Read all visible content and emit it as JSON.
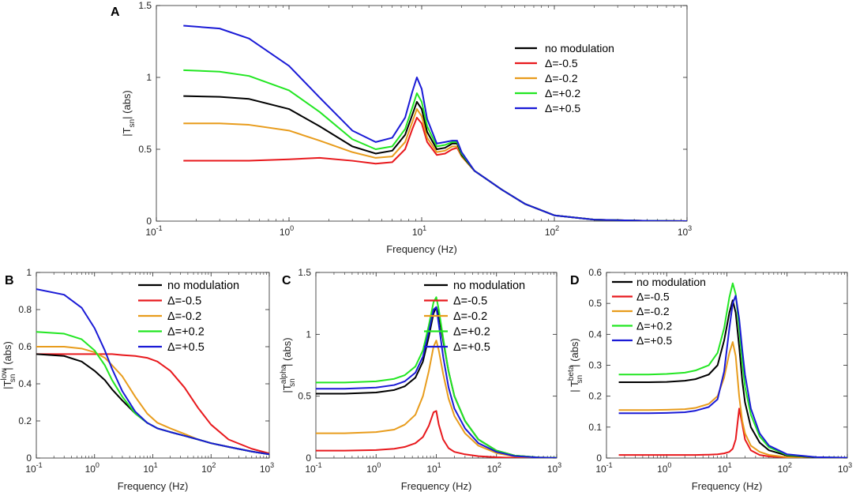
{
  "colors": {
    "no_modulation": "#000000",
    "m05": "#e8191d",
    "m02": "#e89c1c",
    "p02": "#22e622",
    "p05": "#1a1ad6",
    "axis": "#262626"
  },
  "chart_data": [
    {
      "id": "A",
      "type": "line",
      "panel_label": "A",
      "title": "",
      "xlabel": "Frequency (Hz)",
      "ylabel_parts": [
        "|T",
        "sn",
        "",
        "| (abs)"
      ],
      "xscale": "log",
      "xlim": [
        0.1,
        1000
      ],
      "ylim": [
        0,
        1.5
      ],
      "yticks": [
        0,
        0.5,
        1,
        1.5
      ],
      "ytick_labels": [
        "0",
        "0.5",
        "1",
        "1.5"
      ],
      "xticks": [
        0.1,
        1,
        10,
        100,
        1000
      ],
      "xtick_bases": [
        "10",
        "10",
        "10",
        "10",
        "10"
      ],
      "xtick_exps": [
        "-1",
        "0",
        "1",
        "2",
        "3"
      ],
      "legend_loc": "upper-right",
      "x": [
        0.16,
        0.3,
        0.5,
        1,
        1.7,
        3,
        4.5,
        6,
        7.5,
        8.5,
        9.2,
        10,
        11,
        13,
        15,
        17,
        18.5,
        20,
        25,
        30,
        40,
        60,
        100,
        200,
        500,
        1000
      ],
      "series": [
        {
          "name": "no modulation",
          "color_key": "no_modulation",
          "values": [
            0.87,
            0.865,
            0.85,
            0.78,
            0.66,
            0.52,
            0.47,
            0.49,
            0.6,
            0.74,
            0.83,
            0.78,
            0.62,
            0.5,
            0.51,
            0.54,
            0.54,
            0.46,
            0.35,
            0.3,
            0.22,
            0.12,
            0.04,
            0.01,
            0.002,
            0.0
          ]
        },
        {
          "name": "Δ=-0.5",
          "color_key": "m05",
          "values": [
            0.42,
            0.42,
            0.42,
            0.43,
            0.44,
            0.42,
            0.4,
            0.41,
            0.5,
            0.64,
            0.72,
            0.68,
            0.55,
            0.46,
            0.47,
            0.5,
            0.51,
            0.45,
            0.35,
            0.3,
            0.22,
            0.12,
            0.04,
            0.01,
            0.002,
            0.0
          ]
        },
        {
          "name": "Δ=-0.2",
          "color_key": "m02",
          "values": [
            0.68,
            0.68,
            0.67,
            0.63,
            0.56,
            0.48,
            0.44,
            0.45,
            0.55,
            0.69,
            0.78,
            0.73,
            0.58,
            0.48,
            0.49,
            0.52,
            0.52,
            0.45,
            0.35,
            0.3,
            0.22,
            0.12,
            0.04,
            0.01,
            0.002,
            0.0
          ]
        },
        {
          "name": "Δ=+0.2",
          "color_key": "p02",
          "values": [
            1.05,
            1.04,
            1.01,
            0.91,
            0.76,
            0.57,
            0.5,
            0.52,
            0.64,
            0.79,
            0.89,
            0.83,
            0.66,
            0.52,
            0.53,
            0.55,
            0.55,
            0.47,
            0.35,
            0.3,
            0.22,
            0.12,
            0.04,
            0.01,
            0.002,
            0.0
          ]
        },
        {
          "name": "Δ=+0.5",
          "color_key": "p05",
          "values": [
            1.36,
            1.34,
            1.27,
            1.08,
            0.86,
            0.63,
            0.55,
            0.58,
            0.72,
            0.9,
            1.0,
            0.92,
            0.71,
            0.54,
            0.55,
            0.56,
            0.56,
            0.48,
            0.35,
            0.3,
            0.22,
            0.12,
            0.04,
            0.01,
            0.002,
            0.0
          ]
        }
      ]
    },
    {
      "id": "B",
      "type": "line",
      "panel_label": "B",
      "title": "",
      "xlabel": "Frequency (Hz)",
      "ylabel_parts": [
        "|T",
        "sn",
        "low",
        "| (abs)"
      ],
      "xscale": "log",
      "xlim": [
        0.1,
        1000
      ],
      "ylim": [
        0,
        1
      ],
      "yticks": [
        0,
        0.2,
        0.4,
        0.6,
        0.8,
        1
      ],
      "ytick_labels": [
        "0",
        "0.2",
        "0.4",
        "0.6",
        "0.8",
        "1"
      ],
      "xticks": [
        0.1,
        1,
        10,
        100,
        1000
      ],
      "xtick_bases": [
        "10",
        "10",
        "10",
        "10",
        "10"
      ],
      "xtick_exps": [
        "-1",
        "0",
        "1",
        "2",
        "3"
      ],
      "legend_loc": "upper-right",
      "x": [
        0.1,
        0.3,
        0.6,
        1,
        1.5,
        2,
        3,
        5,
        8,
        12,
        20,
        35,
        60,
        100,
        200,
        500,
        1000
      ],
      "series": [
        {
          "name": "no modulation",
          "color_key": "no_modulation",
          "values": [
            0.56,
            0.55,
            0.52,
            0.47,
            0.42,
            0.37,
            0.31,
            0.24,
            0.19,
            0.16,
            0.14,
            0.12,
            0.1,
            0.08,
            0.06,
            0.035,
            0.02
          ]
        },
        {
          "name": "Δ=-0.5",
          "color_key": "m05",
          "values": [
            0.56,
            0.56,
            0.56,
            0.56,
            0.56,
            0.56,
            0.555,
            0.55,
            0.54,
            0.52,
            0.47,
            0.38,
            0.27,
            0.18,
            0.1,
            0.05,
            0.025
          ]
        },
        {
          "name": "Δ=-0.2",
          "color_key": "m02",
          "values": [
            0.6,
            0.6,
            0.59,
            0.57,
            0.54,
            0.5,
            0.44,
            0.33,
            0.24,
            0.19,
            0.16,
            0.13,
            0.1,
            0.08,
            0.06,
            0.035,
            0.02
          ]
        },
        {
          "name": "Δ=+0.2",
          "color_key": "p02",
          "values": [
            0.68,
            0.67,
            0.64,
            0.58,
            0.5,
            0.42,
            0.33,
            0.24,
            0.19,
            0.16,
            0.14,
            0.12,
            0.1,
            0.08,
            0.06,
            0.035,
            0.02
          ]
        },
        {
          "name": "Δ=+0.5",
          "color_key": "p05",
          "values": [
            0.91,
            0.88,
            0.81,
            0.7,
            0.58,
            0.48,
            0.36,
            0.25,
            0.19,
            0.16,
            0.14,
            0.12,
            0.1,
            0.08,
            0.06,
            0.035,
            0.02
          ]
        }
      ]
    },
    {
      "id": "C",
      "type": "line",
      "panel_label": "C",
      "title": "",
      "xlabel": "Frequency (Hz)",
      "ylabel_parts": [
        "|T",
        "sn",
        "alpha",
        "| (abs)"
      ],
      "xscale": "log",
      "xlim": [
        0.1,
        1000
      ],
      "ylim": [
        0,
        1.5
      ],
      "yticks": [
        0,
        0.5,
        1,
        1.5
      ],
      "ytick_labels": [
        "0",
        "0.5",
        "1",
        "1.5"
      ],
      "xticks": [
        0.1,
        1,
        10,
        100,
        1000
      ],
      "xtick_bases": [
        "10",
        "10",
        "10",
        "10",
        "10"
      ],
      "xtick_exps": [
        "-1",
        "0",
        "1",
        "2",
        "3"
      ],
      "legend_loc": "upper-right",
      "x": [
        0.1,
        0.3,
        1,
        2,
        3,
        4.5,
        6,
        7.5,
        9,
        10,
        11,
        13,
        16,
        20,
        30,
        50,
        100,
        200,
        500,
        1000
      ],
      "series": [
        {
          "name": "no modulation",
          "color_key": "no_modulation",
          "values": [
            0.52,
            0.52,
            0.53,
            0.55,
            0.58,
            0.65,
            0.78,
            0.98,
            1.17,
            1.22,
            1.15,
            0.95,
            0.7,
            0.5,
            0.3,
            0.15,
            0.06,
            0.02,
            0.005,
            0.002
          ]
        },
        {
          "name": "Δ=-0.5",
          "color_key": "m05",
          "values": [
            0.06,
            0.06,
            0.065,
            0.075,
            0.09,
            0.12,
            0.17,
            0.26,
            0.37,
            0.38,
            0.27,
            0.15,
            0.08,
            0.05,
            0.03,
            0.015,
            0.006,
            0.002,
            0.001,
            0.0
          ]
        },
        {
          "name": "Δ=-0.2",
          "color_key": "m02",
          "values": [
            0.2,
            0.2,
            0.21,
            0.23,
            0.27,
            0.35,
            0.5,
            0.7,
            0.9,
            0.95,
            0.87,
            0.68,
            0.48,
            0.34,
            0.2,
            0.1,
            0.04,
            0.013,
            0.003,
            0.001
          ]
        },
        {
          "name": "Δ=+0.2",
          "color_key": "p02",
          "values": [
            0.61,
            0.61,
            0.62,
            0.64,
            0.67,
            0.74,
            0.87,
            1.07,
            1.26,
            1.3,
            1.2,
            0.97,
            0.7,
            0.5,
            0.3,
            0.15,
            0.06,
            0.02,
            0.005,
            0.002
          ]
        },
        {
          "name": "Δ=+0.5",
          "color_key": "p05",
          "values": [
            0.56,
            0.56,
            0.57,
            0.59,
            0.62,
            0.69,
            0.82,
            1.02,
            1.2,
            1.22,
            1.08,
            0.82,
            0.57,
            0.4,
            0.24,
            0.12,
            0.05,
            0.016,
            0.004,
            0.001
          ]
        }
      ]
    },
    {
      "id": "D",
      "type": "line",
      "panel_label": "D",
      "title": "",
      "xlabel": "Frequency (Hz)",
      "ylabel_parts": [
        "| T",
        "sn",
        "beta",
        "| (abs)"
      ],
      "xscale": "log",
      "xlim": [
        0.1,
        1000
      ],
      "ylim": [
        0,
        0.6
      ],
      "yticks": [
        0,
        0.1,
        0.2,
        0.3,
        0.4,
        0.5,
        0.6
      ],
      "ytick_labels": [
        "0",
        "0.1",
        "0.2",
        "0.3",
        "0.4",
        "0.5",
        "0.6"
      ],
      "xticks": [
        0.1,
        1,
        10,
        100,
        1000
      ],
      "xtick_bases": [
        "10",
        "10",
        "10",
        "10",
        "10"
      ],
      "xtick_exps": [
        "-1",
        "0",
        "1",
        "2",
        "3"
      ],
      "legend_loc": "upper-left",
      "x": [
        0.16,
        0.5,
        1,
        2,
        3,
        5,
        7,
        9,
        11,
        12.5,
        14,
        16,
        18,
        20,
        25,
        35,
        50,
        100,
        300,
        1000
      ],
      "series": [
        {
          "name": "no modulation",
          "color_key": "no_modulation",
          "values": [
            0.245,
            0.245,
            0.246,
            0.25,
            0.255,
            0.27,
            0.3,
            0.38,
            0.47,
            0.51,
            0.47,
            0.36,
            0.25,
            0.18,
            0.1,
            0.05,
            0.025,
            0.008,
            0.002,
            0.0
          ]
        },
        {
          "name": "Δ=-0.5",
          "color_key": "m05",
          "values": [
            0.01,
            0.01,
            0.01,
            0.01,
            0.01,
            0.011,
            0.012,
            0.015,
            0.02,
            0.03,
            0.06,
            0.16,
            0.11,
            0.06,
            0.025,
            0.01,
            0.005,
            0.002,
            0.001,
            0.0
          ]
        },
        {
          "name": "Δ=-0.2",
          "color_key": "m02",
          "values": [
            0.155,
            0.155,
            0.156,
            0.158,
            0.162,
            0.175,
            0.2,
            0.26,
            0.34,
            0.375,
            0.33,
            0.2,
            0.12,
            0.08,
            0.04,
            0.02,
            0.01,
            0.003,
            0.001,
            0.0
          ]
        },
        {
          "name": "Δ=+0.2",
          "color_key": "p02",
          "values": [
            0.27,
            0.27,
            0.272,
            0.276,
            0.283,
            0.3,
            0.34,
            0.42,
            0.52,
            0.565,
            0.53,
            0.42,
            0.31,
            0.23,
            0.14,
            0.07,
            0.035,
            0.01,
            0.003,
            0.001
          ]
        },
        {
          "name": "Δ=+0.5",
          "color_key": "p05",
          "values": [
            0.145,
            0.145,
            0.146,
            0.148,
            0.153,
            0.165,
            0.19,
            0.28,
            0.42,
            0.5,
            0.525,
            0.45,
            0.35,
            0.27,
            0.16,
            0.08,
            0.04,
            0.012,
            0.003,
            0.001
          ]
        }
      ]
    }
  ]
}
